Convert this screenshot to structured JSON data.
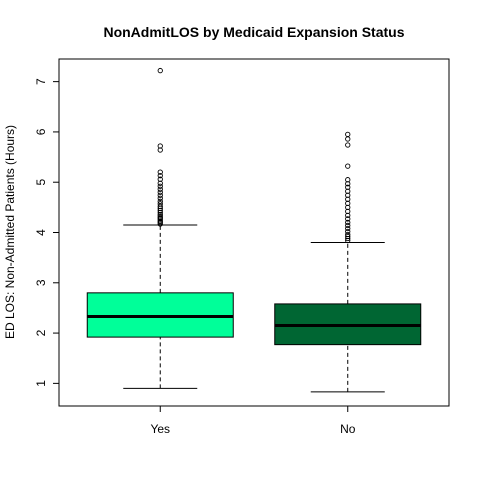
{
  "chart_data": {
    "type": "boxplot",
    "title": "NonAdmitLOS by Medicaid Expansion Status",
    "xlabel": "",
    "ylabel": "ED LOS: Non-Admitted Patients (Hours)",
    "ylim": [
      0.55,
      7.45
    ],
    "yticks": [
      1,
      2,
      3,
      4,
      5,
      6,
      7
    ],
    "grid": false,
    "legend": "none",
    "categories": [
      "Yes",
      "No"
    ],
    "boxes": [
      {
        "category": "Yes",
        "color": "#00ff99",
        "whisker_low": 0.9,
        "q1": 1.92,
        "median": 2.33,
        "q3": 2.8,
        "whisker_high": 4.15,
        "outliers": [
          4.17,
          4.2,
          4.22,
          4.25,
          4.28,
          4.3,
          4.33,
          4.36,
          4.4,
          4.44,
          4.48,
          4.52,
          4.57,
          4.62,
          4.68,
          4.74,
          4.8,
          4.86,
          4.92,
          4.98,
          5.06,
          5.13,
          5.2,
          5.64,
          5.72,
          7.22
        ]
      },
      {
        "category": "No",
        "color": "#006633",
        "whisker_low": 0.83,
        "q1": 1.77,
        "median": 2.15,
        "q3": 2.58,
        "whisker_high": 3.8,
        "outliers": [
          3.84,
          3.88,
          3.92,
          3.96,
          4.02,
          4.08,
          4.14,
          4.2,
          4.27,
          4.34,
          4.42,
          4.5,
          4.58,
          4.66,
          4.74,
          4.82,
          4.9,
          4.97,
          5.05,
          5.32,
          5.74,
          5.86,
          5.95
        ]
      }
    ]
  }
}
